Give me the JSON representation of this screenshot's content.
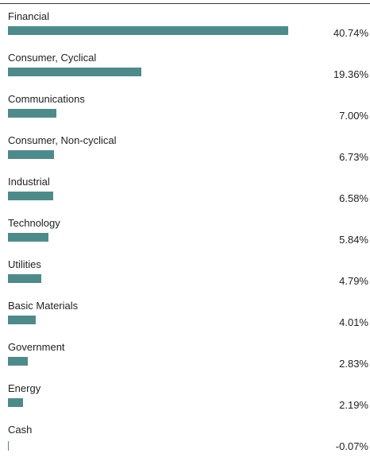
{
  "chart_data": {
    "type": "bar",
    "orientation": "horizontal",
    "categories": [
      "Financial",
      "Consumer, Cyclical",
      "Communications",
      "Consumer, Non-cyclical",
      "Industrial",
      "Technology",
      "Utilities",
      "Basic Materials",
      "Government",
      "Energy",
      "Cash"
    ],
    "values": [
      40.74,
      19.36,
      7.0,
      6.73,
      6.58,
      5.84,
      4.79,
      4.01,
      2.83,
      2.19,
      -0.07
    ],
    "value_labels": [
      "40.74%",
      "19.36%",
      "7.00%",
      "6.73%",
      "6.58%",
      "5.84%",
      "4.79%",
      "4.01%",
      "2.83%",
      "2.19%",
      "-0.07%"
    ],
    "bar_color": "#4f8a8b",
    "title": "",
    "xlabel": "",
    "ylabel": "",
    "xlim": [
      0,
      40.74
    ],
    "grid": false,
    "legend": "none"
  }
}
